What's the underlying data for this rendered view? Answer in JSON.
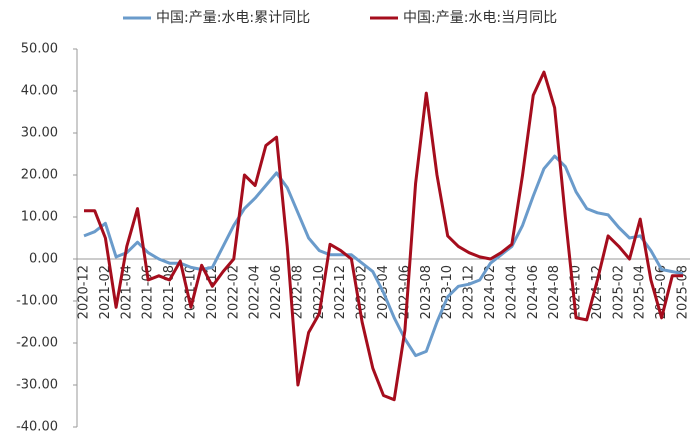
{
  "chart_data": {
    "type": "line",
    "categories": [
      "2020-12",
      null,
      "2021-02",
      null,
      "2021-04",
      null,
      "2021-06",
      null,
      "2021-08",
      null,
      "2021-10",
      null,
      "2021-12",
      null,
      "2022-02",
      null,
      "2022-04",
      null,
      "2022-06",
      null,
      "2022-08",
      null,
      "2022-10",
      null,
      "2022-12",
      null,
      "2023-02",
      null,
      "2023-04",
      null,
      "2023-06",
      null,
      "2023-08",
      null,
      "2023-10",
      null,
      "2023-12",
      null,
      "2024-02",
      null,
      "2024-04",
      null,
      "2024-06",
      null,
      "2024-08",
      null,
      "2024-10",
      null,
      "2024-12",
      null,
      "2025-02",
      null,
      "2025-04",
      null,
      "2025-06",
      null,
      "2025-08"
    ],
    "series": [
      {
        "name": "中国:产量:水电:累计同比",
        "color": "#6a9bcb",
        "values": [
          5.5,
          6.5,
          8.5,
          0.5,
          1.5,
          4,
          1.5,
          0,
          -1,
          -1,
          -2,
          -2.5,
          -2,
          3,
          8,
          12,
          14.5,
          17.5,
          20.5,
          17,
          11,
          5,
          2,
          1,
          1,
          1,
          -1,
          -3,
          -8,
          -14,
          -19,
          -23,
          -22,
          -15,
          -9,
          -6.5,
          -6,
          -5,
          -1,
          1,
          3,
          8,
          15,
          21.5,
          24.5,
          22,
          16,
          12,
          11,
          10.5,
          7.5,
          5,
          5.5,
          2,
          -2.5,
          -3,
          -3.5
        ]
      },
      {
        "name": "中国:产量:水电:当月同比",
        "color": "#a50d1d",
        "values": [
          11.5,
          11.5,
          5,
          -11.5,
          3,
          12,
          -5,
          -4,
          -5,
          -0.5,
          -11.5,
          -1.5,
          -6.5,
          -3,
          0,
          20,
          17.5,
          27,
          29,
          3,
          -30,
          -17.5,
          -13,
          3.5,
          2,
          0,
          -15,
          -26,
          -32.5,
          -33.5,
          -17,
          18,
          39.5,
          20,
          5.5,
          3,
          1.5,
          0.5,
          0,
          1.5,
          3.5,
          20,
          39,
          44.5,
          36,
          10,
          -14,
          -14.5,
          -5,
          5.5,
          3,
          0,
          9.5,
          -5,
          -14,
          -4,
          -4
        ]
      }
    ],
    "ylim": [
      -40,
      50
    ],
    "yticks": [
      {
        "value": -40,
        "label": "-40.00"
      },
      {
        "value": -30,
        "label": "-30.00"
      },
      {
        "value": -20,
        "label": "-20.00"
      },
      {
        "value": -10,
        "label": "-10.00"
      },
      {
        "value": 0,
        "label": "0.00"
      },
      {
        "value": 10,
        "label": "10.00"
      },
      {
        "value": 20,
        "label": "20.00"
      },
      {
        "value": 30,
        "label": "30.00"
      },
      {
        "value": 40,
        "label": "40.00"
      },
      {
        "value": 50,
        "label": "50.00"
      }
    ],
    "grid": false,
    "legend": "top"
  }
}
